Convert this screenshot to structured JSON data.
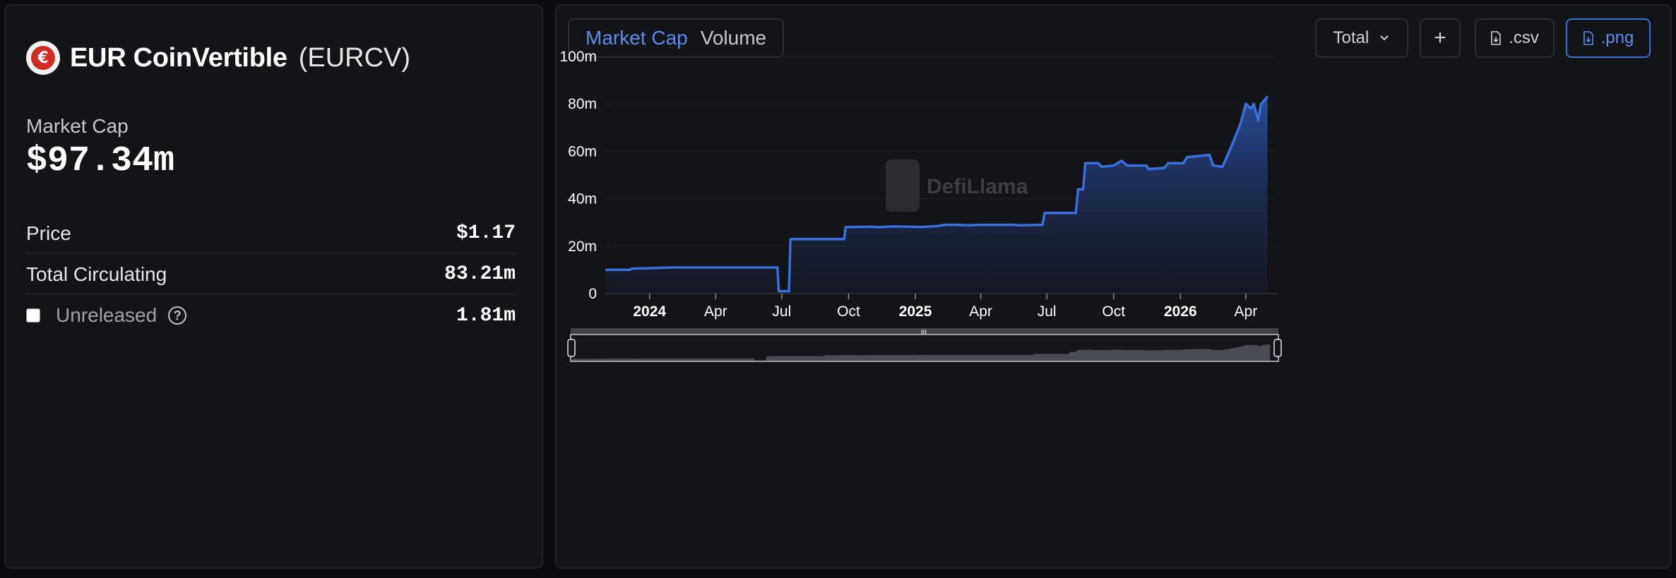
{
  "coin": {
    "name": "EUR CoinVertible",
    "symbol": "(EURCV)",
    "logo_glyph": "€"
  },
  "market_cap": {
    "label": "Market Cap",
    "value": "$97.34m"
  },
  "stats": [
    {
      "label": "Price",
      "value": "$1.17"
    },
    {
      "label": "Total Circulating",
      "value": "83.21m"
    },
    {
      "label": "Unreleased",
      "value": "1.81m",
      "checked": false
    }
  ],
  "tabs": [
    {
      "label": "Market Cap",
      "active": true
    },
    {
      "label": "Volume",
      "active": false
    }
  ],
  "toolbar": {
    "total_label": "Total",
    "add_label": "+",
    "csv_label": ".csv",
    "png_label": ".png"
  },
  "watermark": "DefiLlama",
  "colors": {
    "accent": "#5b8def",
    "line": "#3a6fe0",
    "brand_red": "#d42a24"
  },
  "chart_data": {
    "type": "area",
    "title": "",
    "xlabel": "",
    "ylabel": "",
    "ylim": [
      0,
      100
    ],
    "y_unit": "m",
    "y_ticks": [
      "0",
      "20m",
      "40m",
      "60m",
      "80m",
      "100m"
    ],
    "x_range": [
      "2023-11-01",
      "2026-05-10"
    ],
    "x_ticks": [
      {
        "label": "2024",
        "date": "2024-01-01",
        "bold": true
      },
      {
        "label": "Apr",
        "date": "2024-04-01",
        "bold": false
      },
      {
        "label": "Jul",
        "date": "2024-07-01",
        "bold": false
      },
      {
        "label": "Oct",
        "date": "2024-10-01",
        "bold": false
      },
      {
        "label": "2025",
        "date": "2025-01-01",
        "bold": true
      },
      {
        "label": "Apr",
        "date": "2025-04-01",
        "bold": false
      },
      {
        "label": "Jul",
        "date": "2025-07-01",
        "bold": false
      },
      {
        "label": "Oct",
        "date": "2025-10-01",
        "bold": false
      },
      {
        "label": "2026",
        "date": "2026-01-01",
        "bold": true
      },
      {
        "label": "Apr",
        "date": "2026-04-01",
        "bold": false
      }
    ],
    "grid": true,
    "series": [
      {
        "points": [
          [
            "2023-11-01",
            10.0
          ],
          [
            "2023-12-05",
            10.0
          ],
          [
            "2023-12-07",
            10.5
          ],
          [
            "2023-12-20",
            10.6
          ],
          [
            "2024-01-01",
            10.7
          ],
          [
            "2024-02-01",
            11.0
          ],
          [
            "2024-06-25",
            11.0
          ],
          [
            "2024-06-27",
            1.0
          ],
          [
            "2024-07-11",
            1.0
          ],
          [
            "2024-07-13",
            23.0
          ],
          [
            "2024-09-25",
            23.0
          ],
          [
            "2024-09-27",
            28.0
          ],
          [
            "2024-11-01",
            28.2
          ],
          [
            "2024-11-10",
            28.0
          ],
          [
            "2024-12-01",
            28.3
          ],
          [
            "2025-01-10",
            28.1
          ],
          [
            "2025-02-01",
            28.5
          ],
          [
            "2025-02-10",
            29.0
          ],
          [
            "2025-03-01",
            29.0
          ],
          [
            "2025-03-15",
            28.8
          ],
          [
            "2025-04-01",
            29.0
          ],
          [
            "2025-05-15",
            29.0
          ],
          [
            "2025-05-25",
            28.8
          ],
          [
            "2025-06-25",
            29.0
          ],
          [
            "2025-06-28",
            34.0
          ],
          [
            "2025-08-10",
            34.0
          ],
          [
            "2025-08-13",
            44.0
          ],
          [
            "2025-08-20",
            44.0
          ],
          [
            "2025-08-23",
            55.0
          ],
          [
            "2025-09-10",
            55.0
          ],
          [
            "2025-09-14",
            53.5
          ],
          [
            "2025-10-01",
            54.0
          ],
          [
            "2025-10-12",
            56.0
          ],
          [
            "2025-10-20",
            54.0
          ],
          [
            "2025-11-15",
            54.0
          ],
          [
            "2025-11-18",
            52.5
          ],
          [
            "2025-12-10",
            53.0
          ],
          [
            "2025-12-15",
            55.0
          ],
          [
            "2026-01-05",
            55.0
          ],
          [
            "2026-01-10",
            57.5
          ],
          [
            "2026-02-10",
            58.5
          ],
          [
            "2026-02-15",
            54.0
          ],
          [
            "2026-02-28",
            53.5
          ],
          [
            "2026-03-05",
            57.0
          ],
          [
            "2026-03-12",
            62.0
          ],
          [
            "2026-03-20",
            68.0
          ],
          [
            "2026-03-25",
            72.0
          ],
          [
            "2026-04-01",
            80.0
          ],
          [
            "2026-04-08",
            78.0
          ],
          [
            "2026-04-12",
            80.0
          ],
          [
            "2026-04-18",
            73.0
          ],
          [
            "2026-04-22",
            80.0
          ],
          [
            "2026-04-28",
            82.0
          ],
          [
            "2026-05-01",
            83.21
          ]
        ]
      }
    ]
  }
}
